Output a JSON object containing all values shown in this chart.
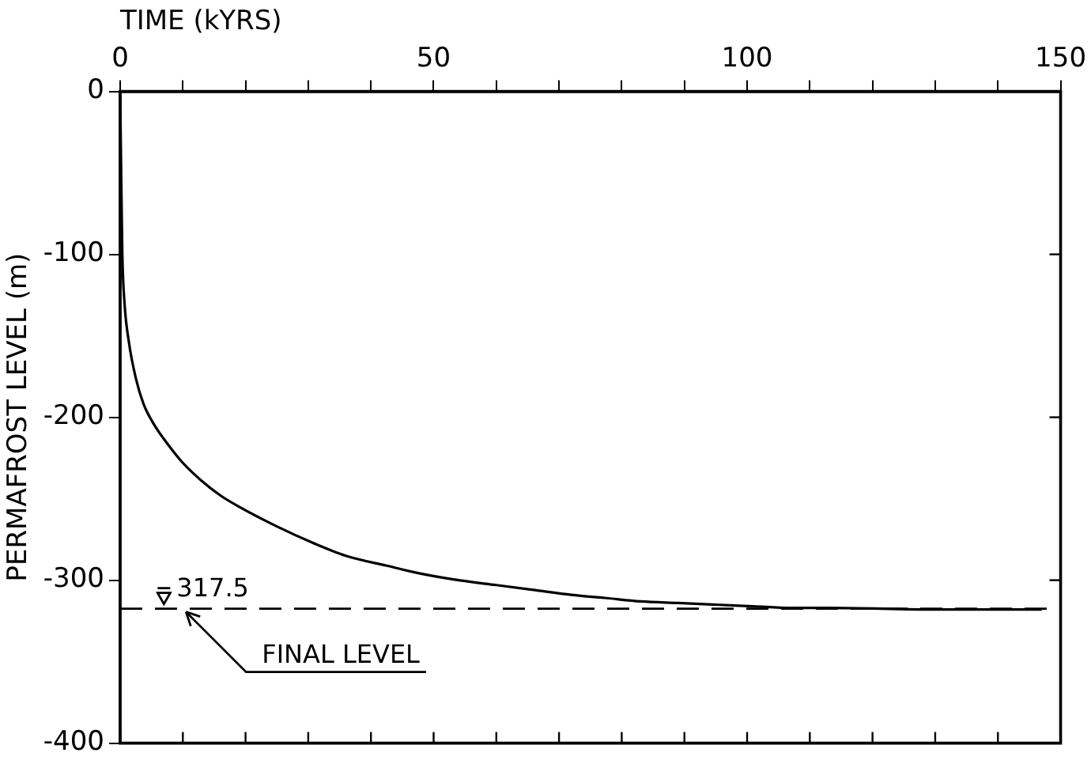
{
  "chart_data": {
    "type": "line",
    "xlabel": "TIME (kYRS)",
    "ylabel": "PERMAFROST LEVEL (m)",
    "x": [
      0,
      0.2,
      0.35,
      0.7,
      1.4,
      2.5,
      3.75,
      5.5,
      7.3,
      10,
      13,
      16,
      19,
      25,
      30.7,
      36,
      42.4,
      48,
      54,
      60,
      66,
      72,
      77.6,
      83,
      89,
      95,
      101,
      107,
      113,
      130,
      147
    ],
    "series": [
      {
        "color": "#000000",
        "values": [
          0,
          -60,
          -100,
          -130,
          -154,
          -176,
          -192,
          -205,
          -215,
          -228,
          -239,
          -248,
          -255,
          -267,
          -277,
          -285,
          -291,
          -296,
          -300,
          -303,
          -306,
          -309,
          -311,
          -313,
          -314,
          -315,
          -316,
          -317,
          -317,
          -318,
          -318
        ]
      }
    ],
    "xlim": [
      0,
      150
    ],
    "ylim": [
      -400,
      0
    ],
    "xticks": [
      0,
      {
        "value": 10,
        "label": null
      },
      {
        "value": 20,
        "label": null
      },
      {
        "value": 30,
        "label": null
      },
      {
        "value": 40,
        "label": null
      },
      50,
      {
        "value": 60,
        "label": null
      },
      {
        "value": 70,
        "label": null
      },
      {
        "value": 80,
        "label": null
      },
      {
        "value": 90,
        "label": null
      },
      100,
      {
        "value": 110,
        "label": null
      },
      {
        "value": 120,
        "label": null
      },
      {
        "value": 130,
        "label": null
      },
      {
        "value": 140,
        "label": null
      },
      150
    ],
    "yticks": [
      0,
      -100,
      -200,
      -300,
      -400
    ],
    "ref_lines": [
      {
        "axis": "y",
        "value": -317.5,
        "color": "#000000",
        "line_style": "dashed"
      }
    ],
    "annotations": [
      {
        "text": "317.5",
        "x": 9,
        "y": -317.5
      },
      {
        "text": "FINAL LEVEL",
        "x": 10,
        "y": -317.5
      }
    ],
    "grid": false,
    "legend": false,
    "marker": "none",
    "line_style": "solid"
  }
}
